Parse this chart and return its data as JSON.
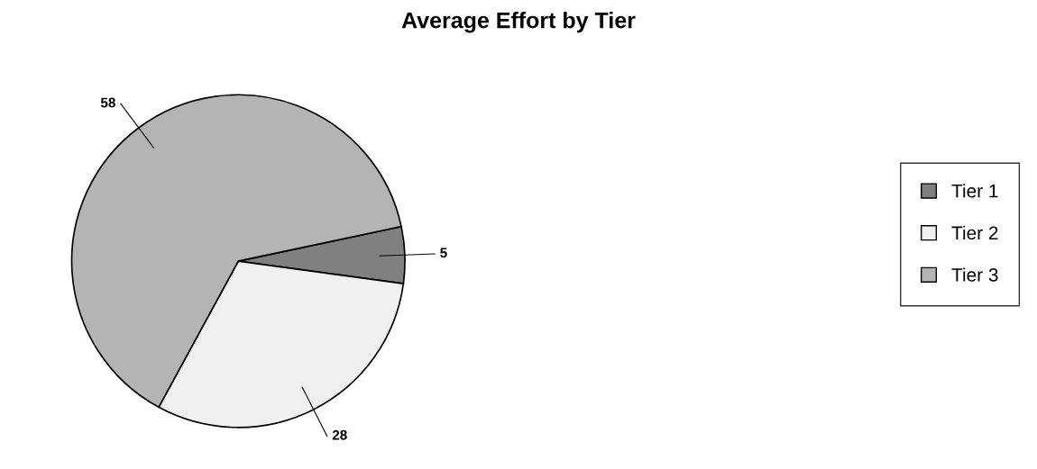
{
  "chart_data": {
    "type": "pie",
    "title": "Average Effort by Tier",
    "categories": [
      "Tier 1",
      "Tier 2",
      "Tier 3"
    ],
    "values": [
      5,
      28,
      58
    ],
    "colors": [
      "#808080",
      "#f0f0f0",
      "#b4b4b4"
    ],
    "data_labels": true,
    "legend": "right"
  }
}
